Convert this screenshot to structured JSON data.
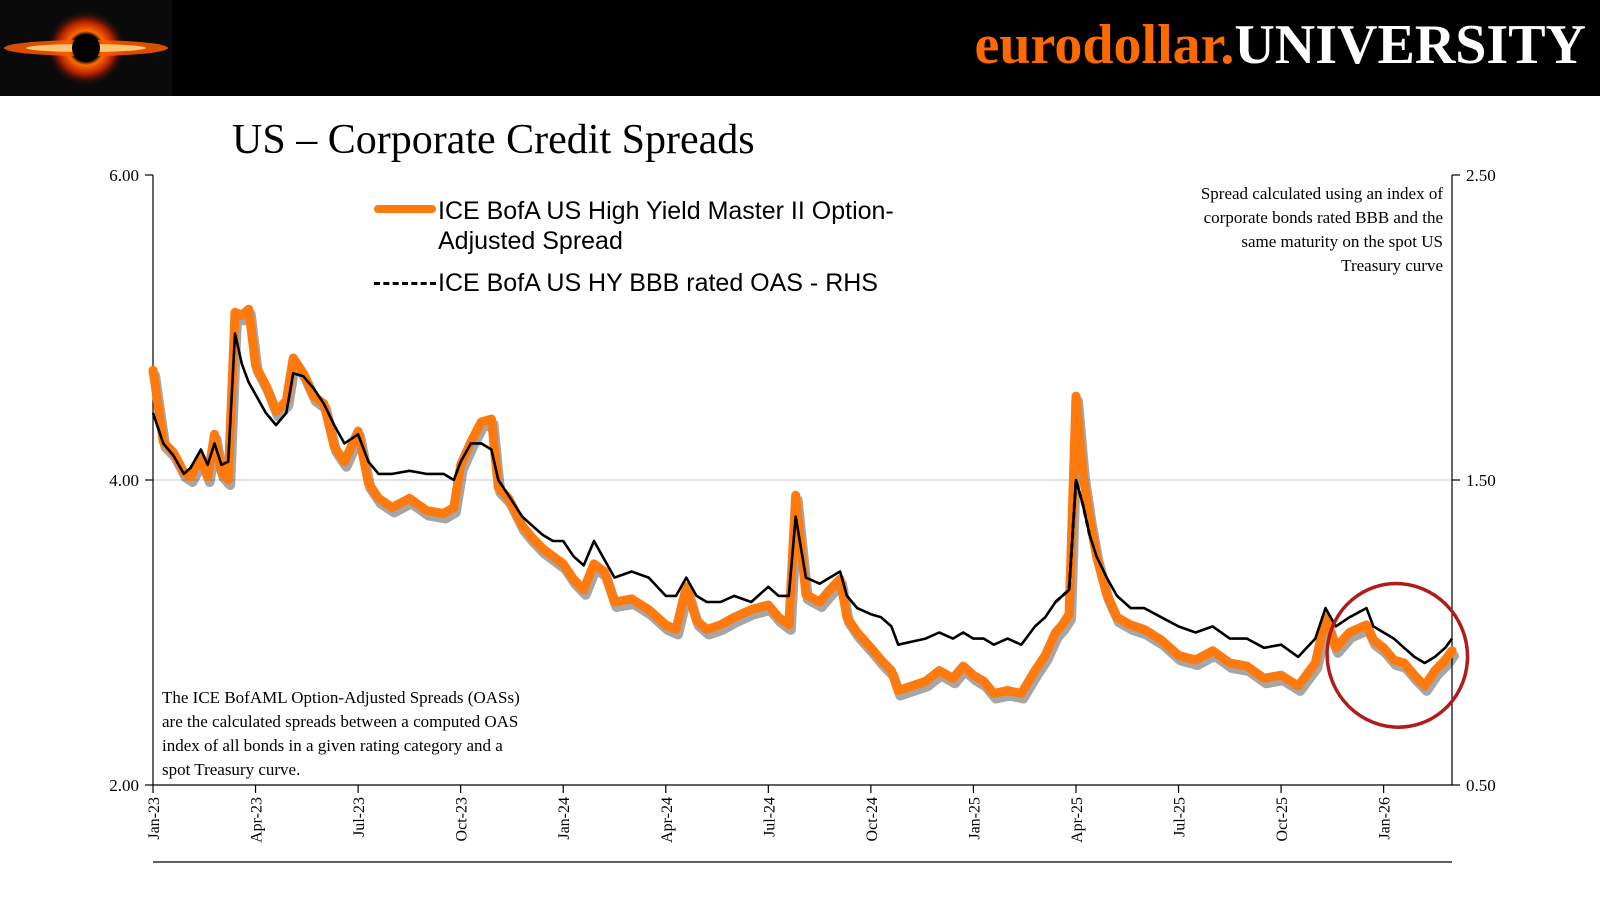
{
  "header": {
    "brand_part1": "eurodollar.",
    "brand_part2": "UNIVERSITY",
    "logo_icon": "black-hole-logo-icon"
  },
  "title": "US – Corporate Credit Spreads",
  "notes": {
    "right": "Spread calculated using an index of corporate bonds rated BBB and the same maturity on the spot US Treasury curve",
    "left": "The ICE BofAML Option-Adjusted Spreads (OASs) are the calculated spreads between a computed OAS index of all bonds in a given rating category and a spot Treasury curve."
  },
  "legend": {
    "hy_label": "ICE BofA US High Yield Master II Option-Adjusted Spread",
    "bbb_label": "ICE BofA US HY BBB rated OAS - RHS"
  },
  "colors": {
    "hy": "#ff7a0e",
    "bbb": "#000000",
    "circle": "#b01c1c",
    "banner": "#000000",
    "brand_accent": "#ff6a00"
  },
  "chart_data": {
    "type": "line",
    "x_tick_labels": [
      "Jan-23",
      "Apr-23",
      "Jul-23",
      "Oct-23",
      "Jan-24",
      "Apr-24",
      "Jul-24",
      "Oct-24",
      "Jan-25",
      "Apr-25",
      "Jul-25",
      "Oct-25",
      "Jan-26"
    ],
    "x_tick_index": [
      0,
      3,
      6,
      9,
      12,
      15,
      18,
      21,
      24,
      27,
      30,
      33,
      36
    ],
    "x_range": [
      0,
      38
    ],
    "left_axis": {
      "labels": [
        "2.00",
        "4.00",
        "6.00"
      ],
      "values": [
        2,
        4,
        6
      ],
      "range": [
        2,
        6
      ]
    },
    "right_axis": {
      "labels": [
        "0.50",
        "1.50",
        "2.50"
      ],
      "values": [
        0.5,
        1.5,
        2.5
      ],
      "range": [
        0.5,
        2.5
      ]
    },
    "gridline_at": 4,
    "series": [
      {
        "name": "ICE BofA US High Yield Master II Option-Adjusted Spread",
        "axis": "left",
        "points": [
          [
            0,
            4.72
          ],
          [
            0.3,
            4.25
          ],
          [
            0.6,
            4.18
          ],
          [
            0.9,
            4.05
          ],
          [
            1.1,
            4.02
          ],
          [
            1.4,
            4.15
          ],
          [
            1.6,
            4.02
          ],
          [
            1.8,
            4.3
          ],
          [
            2.0,
            4.05
          ],
          [
            2.2,
            4.0
          ],
          [
            2.4,
            5.1
          ],
          [
            2.6,
            5.08
          ],
          [
            2.8,
            5.12
          ],
          [
            3.0,
            4.75
          ],
          [
            3.3,
            4.62
          ],
          [
            3.6,
            4.45
          ],
          [
            3.9,
            4.52
          ],
          [
            4.1,
            4.8
          ],
          [
            4.4,
            4.7
          ],
          [
            4.7,
            4.55
          ],
          [
            5.0,
            4.5
          ],
          [
            5.3,
            4.22
          ],
          [
            5.6,
            4.12
          ],
          [
            6.0,
            4.32
          ],
          [
            6.3,
            3.98
          ],
          [
            6.6,
            3.88
          ],
          [
            7.0,
            3.82
          ],
          [
            7.5,
            3.88
          ],
          [
            8.0,
            3.8
          ],
          [
            8.5,
            3.78
          ],
          [
            8.8,
            3.82
          ],
          [
            9.0,
            4.1
          ],
          [
            9.3,
            4.25
          ],
          [
            9.6,
            4.38
          ],
          [
            9.9,
            4.4
          ],
          [
            10.1,
            3.95
          ],
          [
            10.4,
            3.88
          ],
          [
            10.8,
            3.7
          ],
          [
            11.1,
            3.62
          ],
          [
            11.4,
            3.55
          ],
          [
            11.7,
            3.5
          ],
          [
            12.0,
            3.45
          ],
          [
            12.3,
            3.35
          ],
          [
            12.6,
            3.28
          ],
          [
            12.9,
            3.45
          ],
          [
            13.2,
            3.4
          ],
          [
            13.5,
            3.2
          ],
          [
            14.0,
            3.22
          ],
          [
            14.5,
            3.15
          ],
          [
            15.0,
            3.05
          ],
          [
            15.3,
            3.02
          ],
          [
            15.6,
            3.3
          ],
          [
            15.9,
            3.08
          ],
          [
            16.2,
            3.02
          ],
          [
            16.6,
            3.05
          ],
          [
            17.0,
            3.1
          ],
          [
            17.5,
            3.15
          ],
          [
            18.0,
            3.18
          ],
          [
            18.3,
            3.1
          ],
          [
            18.6,
            3.05
          ],
          [
            18.8,
            3.9
          ],
          [
            19.1,
            3.25
          ],
          [
            19.5,
            3.2
          ],
          [
            19.8,
            3.28
          ],
          [
            20.1,
            3.35
          ],
          [
            20.3,
            3.1
          ],
          [
            20.6,
            3.0
          ],
          [
            21.0,
            2.9
          ],
          [
            21.3,
            2.82
          ],
          [
            21.6,
            2.75
          ],
          [
            21.8,
            2.62
          ],
          [
            22.2,
            2.65
          ],
          [
            22.6,
            2.68
          ],
          [
            23.0,
            2.75
          ],
          [
            23.4,
            2.7
          ],
          [
            23.7,
            2.78
          ],
          [
            24.0,
            2.72
          ],
          [
            24.3,
            2.68
          ],
          [
            24.6,
            2.6
          ],
          [
            25.0,
            2.62
          ],
          [
            25.4,
            2.6
          ],
          [
            25.8,
            2.75
          ],
          [
            26.1,
            2.85
          ],
          [
            26.4,
            3.0
          ],
          [
            26.6,
            3.05
          ],
          [
            26.8,
            3.12
          ],
          [
            27.0,
            4.55
          ],
          [
            27.2,
            4.05
          ],
          [
            27.4,
            3.75
          ],
          [
            27.6,
            3.5
          ],
          [
            27.9,
            3.25
          ],
          [
            28.2,
            3.1
          ],
          [
            28.6,
            3.05
          ],
          [
            29.0,
            3.02
          ],
          [
            29.5,
            2.95
          ],
          [
            30.0,
            2.85
          ],
          [
            30.5,
            2.82
          ],
          [
            31.0,
            2.88
          ],
          [
            31.5,
            2.8
          ],
          [
            32.0,
            2.78
          ],
          [
            32.5,
            2.7
          ],
          [
            33.0,
            2.72
          ],
          [
            33.5,
            2.65
          ],
          [
            34.0,
            2.8
          ],
          [
            34.3,
            3.1
          ],
          [
            34.6,
            2.9
          ],
          [
            35.0,
            3.0
          ],
          [
            35.5,
            3.05
          ],
          [
            35.7,
            2.95
          ],
          [
            36.0,
            2.9
          ],
          [
            36.3,
            2.82
          ],
          [
            36.6,
            2.8
          ],
          [
            36.9,
            2.72
          ],
          [
            37.2,
            2.65
          ],
          [
            37.5,
            2.75
          ],
          [
            37.8,
            2.82
          ],
          [
            38.0,
            2.88
          ]
        ]
      },
      {
        "name": "ICE BofA US HY BBB rated OAS - RHS",
        "axis": "right",
        "points": [
          [
            0,
            1.72
          ],
          [
            0.3,
            1.62
          ],
          [
            0.6,
            1.58
          ],
          [
            0.9,
            1.52
          ],
          [
            1.1,
            1.54
          ],
          [
            1.4,
            1.6
          ],
          [
            1.6,
            1.55
          ],
          [
            1.8,
            1.62
          ],
          [
            2.0,
            1.55
          ],
          [
            2.2,
            1.56
          ],
          [
            2.4,
            1.98
          ],
          [
            2.6,
            1.88
          ],
          [
            2.8,
            1.82
          ],
          [
            3.0,
            1.78
          ],
          [
            3.3,
            1.72
          ],
          [
            3.6,
            1.68
          ],
          [
            3.9,
            1.72
          ],
          [
            4.1,
            1.85
          ],
          [
            4.4,
            1.84
          ],
          [
            4.7,
            1.8
          ],
          [
            5.0,
            1.75
          ],
          [
            5.3,
            1.68
          ],
          [
            5.6,
            1.62
          ],
          [
            6.0,
            1.65
          ],
          [
            6.3,
            1.56
          ],
          [
            6.6,
            1.52
          ],
          [
            7.0,
            1.52
          ],
          [
            7.5,
            1.53
          ],
          [
            8.0,
            1.52
          ],
          [
            8.5,
            1.52
          ],
          [
            8.8,
            1.5
          ],
          [
            9.0,
            1.56
          ],
          [
            9.3,
            1.62
          ],
          [
            9.6,
            1.62
          ],
          [
            9.9,
            1.6
          ],
          [
            10.1,
            1.5
          ],
          [
            10.4,
            1.45
          ],
          [
            10.8,
            1.38
          ],
          [
            11.1,
            1.35
          ],
          [
            11.4,
            1.32
          ],
          [
            11.7,
            1.3
          ],
          [
            12.0,
            1.3
          ],
          [
            12.3,
            1.25
          ],
          [
            12.6,
            1.22
          ],
          [
            12.9,
            1.3
          ],
          [
            13.2,
            1.24
          ],
          [
            13.5,
            1.18
          ],
          [
            14.0,
            1.2
          ],
          [
            14.5,
            1.18
          ],
          [
            15.0,
            1.12
          ],
          [
            15.3,
            1.12
          ],
          [
            15.6,
            1.18
          ],
          [
            15.9,
            1.12
          ],
          [
            16.2,
            1.1
          ],
          [
            16.6,
            1.1
          ],
          [
            17.0,
            1.12
          ],
          [
            17.5,
            1.1
          ],
          [
            18.0,
            1.15
          ],
          [
            18.3,
            1.12
          ],
          [
            18.6,
            1.12
          ],
          [
            18.8,
            1.38
          ],
          [
            19.1,
            1.18
          ],
          [
            19.5,
            1.16
          ],
          [
            19.8,
            1.18
          ],
          [
            20.1,
            1.2
          ],
          [
            20.3,
            1.12
          ],
          [
            20.6,
            1.08
          ],
          [
            21.0,
            1.06
          ],
          [
            21.3,
            1.05
          ],
          [
            21.6,
            1.02
          ],
          [
            21.8,
            0.96
          ],
          [
            22.2,
            0.97
          ],
          [
            22.6,
            0.98
          ],
          [
            23.0,
            1.0
          ],
          [
            23.4,
            0.98
          ],
          [
            23.7,
            1.0
          ],
          [
            24.0,
            0.98
          ],
          [
            24.3,
            0.98
          ],
          [
            24.6,
            0.96
          ],
          [
            25.0,
            0.98
          ],
          [
            25.4,
            0.96
          ],
          [
            25.8,
            1.02
          ],
          [
            26.1,
            1.05
          ],
          [
            26.4,
            1.1
          ],
          [
            26.6,
            1.12
          ],
          [
            26.8,
            1.14
          ],
          [
            27.0,
            1.5
          ],
          [
            27.2,
            1.42
          ],
          [
            27.4,
            1.32
          ],
          [
            27.6,
            1.25
          ],
          [
            27.9,
            1.18
          ],
          [
            28.2,
            1.12
          ],
          [
            28.6,
            1.08
          ],
          [
            29.0,
            1.08
          ],
          [
            29.5,
            1.05
          ],
          [
            30.0,
            1.02
          ],
          [
            30.5,
            1.0
          ],
          [
            31.0,
            1.02
          ],
          [
            31.5,
            0.98
          ],
          [
            32.0,
            0.98
          ],
          [
            32.5,
            0.95
          ],
          [
            33.0,
            0.96
          ],
          [
            33.5,
            0.92
          ],
          [
            34.0,
            0.98
          ],
          [
            34.3,
            1.08
          ],
          [
            34.6,
            1.02
          ],
          [
            35.0,
            1.05
          ],
          [
            35.5,
            1.08
          ],
          [
            35.7,
            1.02
          ],
          [
            36.0,
            1.0
          ],
          [
            36.3,
            0.98
          ],
          [
            36.6,
            0.95
          ],
          [
            36.9,
            0.92
          ],
          [
            37.2,
            0.9
          ],
          [
            37.5,
            0.92
          ],
          [
            37.8,
            0.95
          ],
          [
            38.0,
            0.98
          ]
        ]
      }
    ],
    "highlight": "circle-around-latest-data"
  }
}
